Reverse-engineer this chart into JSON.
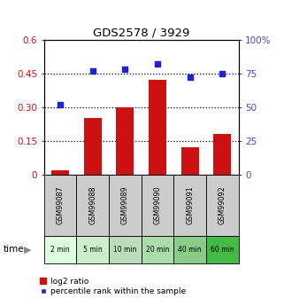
{
  "title": "GDS2578 / 3929",
  "categories": [
    "GSM99087",
    "GSM99088",
    "GSM99089",
    "GSM99090",
    "GSM99091",
    "GSM99092"
  ],
  "time_labels": [
    "2 min",
    "5 min",
    "10 min",
    "20 min",
    "40 min",
    "60 min"
  ],
  "log2_ratio": [
    0.02,
    0.25,
    0.3,
    0.42,
    0.12,
    0.18
  ],
  "percentile_rank": [
    52,
    77,
    78,
    82,
    72,
    75
  ],
  "left_ylim": [
    0,
    0.6
  ],
  "right_ylim": [
    0,
    100
  ],
  "left_yticks": [
    0,
    0.15,
    0.3,
    0.45,
    0.6
  ],
  "right_yticks": [
    0,
    25,
    50,
    75,
    100
  ],
  "left_ytick_labels": [
    "0",
    "0.15",
    "0.30",
    "0.45",
    "0.6"
  ],
  "right_ytick_labels": [
    "0",
    "25",
    "50",
    "75",
    "100%"
  ],
  "bar_color": "#cc1111",
  "dot_color": "#2222cc",
  "gray_bg": "#cccccc",
  "green_colors": [
    "#ddffdd",
    "#cceecc",
    "#bbddbb",
    "#aaddaa",
    "#88cc88",
    "#44bb44"
  ],
  "title_color": "#000000",
  "left_axis_color": "#cc1111",
  "right_axis_color": "#4444cc",
  "legend_bar_label": "log2 ratio",
  "legend_dot_label": "percentile rank within the sample",
  "time_label": "time"
}
